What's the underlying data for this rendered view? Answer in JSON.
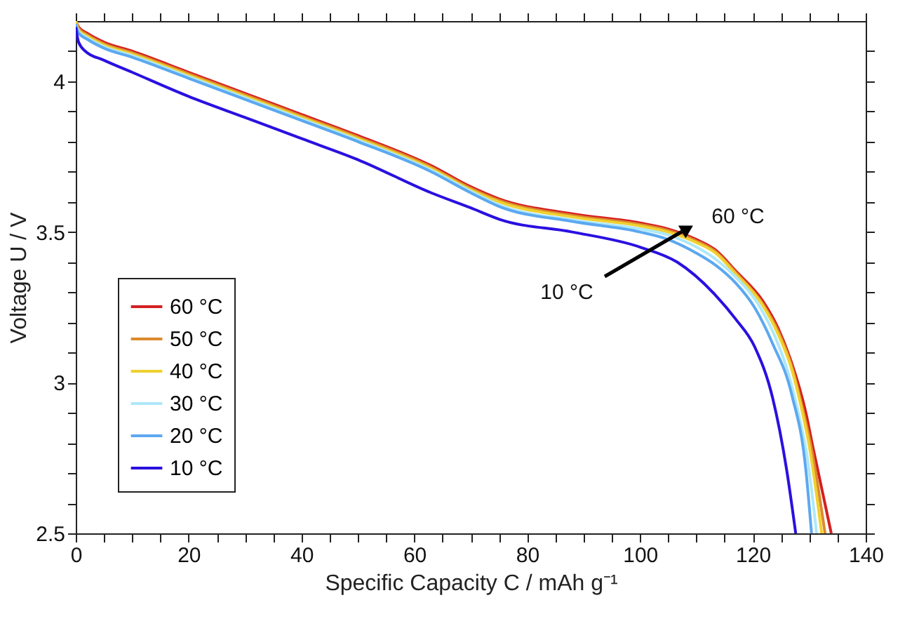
{
  "chart_data": {
    "type": "line",
    "xlabel": "Specific Capacity C / mAh g⁻¹",
    "ylabel": "Voltage U / V",
    "xlim": [
      0,
      140
    ],
    "ylim": [
      2.5,
      4.2
    ],
    "xticks": [
      0,
      {
        "value": 5,
        "label": null
      },
      20,
      {
        "value": 10,
        "label": null
      },
      {
        "value": 15,
        "label": null
      },
      {
        "value": 25,
        "label": null
      },
      {
        "value": 30,
        "label": null
      },
      {
        "value": 35,
        "label": null
      },
      40,
      {
        "value": 45,
        "label": null
      },
      {
        "value": 50,
        "label": null
      },
      {
        "value": 55,
        "label": null
      },
      60,
      {
        "value": 65,
        "label": null
      },
      {
        "value": 70,
        "label": null
      },
      {
        "value": 75,
        "label": null
      },
      80,
      {
        "value": 85,
        "label": null
      },
      {
        "value": 90,
        "label": null
      },
      {
        "value": 95,
        "label": null
      },
      100,
      {
        "value": 105,
        "label": null
      },
      {
        "value": 110,
        "label": null
      },
      {
        "value": 115,
        "label": null
      },
      120,
      {
        "value": 125,
        "label": null
      },
      {
        "value": 130,
        "label": null
      },
      {
        "value": 135,
        "label": null
      },
      140
    ],
    "yticks": [
      2.5,
      {
        "value": 2.6,
        "label": null
      },
      {
        "value": 2.7,
        "label": null
      },
      {
        "value": 2.8,
        "label": null
      },
      {
        "value": 2.9,
        "label": null
      },
      3,
      {
        "value": 3.1,
        "label": null
      },
      {
        "value": 3.2,
        "label": null
      },
      {
        "value": 3.3,
        "label": null
      },
      {
        "value": 3.4,
        "label": null
      },
      3.5,
      {
        "value": 3.6,
        "label": null
      },
      {
        "value": 3.7,
        "label": null
      },
      {
        "value": 3.8,
        "label": null
      },
      {
        "value": 3.9,
        "label": null
      },
      4,
      {
        "value": 4.1,
        "label": null
      }
    ],
    "grid": false,
    "legend": "bottom left",
    "marker": "none",
    "line_style": "solid",
    "annotations": [
      "10 °C",
      "60 °C"
    ],
    "series": [
      {
        "name": "60 °C",
        "color": "#d42020",
        "x": [
          0,
          0.5,
          2,
          5,
          10,
          20,
          30,
          40,
          50,
          63,
          70,
          75,
          88,
          100,
          105,
          110,
          113.4,
          117,
          121.8,
          124.5,
          126.8,
          129.4,
          130.6,
          133.9
        ],
        "values": [
          4.2,
          4.18,
          4.16,
          4.13,
          4.1,
          4.03,
          3.96,
          3.89,
          3.82,
          3.72,
          3.65,
          3.61,
          3.56,
          3.53,
          3.51,
          3.475,
          3.44,
          3.37,
          3.27,
          3.18,
          3.07,
          2.9,
          2.79,
          2.5
        ]
      },
      {
        "name": "50 °C",
        "color": "#dd8a2e",
        "x": [
          0,
          0.5,
          2,
          5,
          10,
          20,
          30,
          40,
          50,
          63,
          70,
          75,
          88,
          100,
          105,
          110,
          113.4,
          117,
          121.8,
          124.5,
          126.8,
          129,
          130.3,
          132.8
        ],
        "values": [
          4.2,
          4.175,
          4.155,
          4.125,
          4.095,
          4.025,
          3.955,
          3.885,
          3.815,
          3.715,
          3.645,
          3.605,
          3.555,
          3.525,
          3.505,
          3.47,
          3.435,
          3.365,
          3.26,
          3.17,
          3.06,
          2.9,
          2.79,
          2.5
        ]
      },
      {
        "name": "40 °C",
        "color": "#f0d030",
        "x": [
          0,
          0.5,
          2,
          5,
          10,
          20,
          30,
          40,
          50,
          63,
          70,
          75,
          88,
          100,
          105,
          110,
          113.4,
          117,
          121.8,
          124.5,
          126.8,
          128.8,
          130,
          132.2
        ],
        "values": [
          4.2,
          4.17,
          4.15,
          4.12,
          4.09,
          4.02,
          3.95,
          3.88,
          3.81,
          3.71,
          3.64,
          3.6,
          3.55,
          3.52,
          3.5,
          3.465,
          3.43,
          3.36,
          3.255,
          3.16,
          3.05,
          2.9,
          2.79,
          2.5
        ]
      },
      {
        "name": "30 °C",
        "color": "#aee8f8",
        "x": [
          0,
          0.5,
          2,
          5,
          10,
          20,
          30,
          40,
          50,
          63,
          70,
          75,
          88,
          100,
          105,
          110,
          113.4,
          117,
          121.3,
          124,
          126.3,
          128.3,
          129.5,
          131.3
        ],
        "values": [
          4.19,
          4.165,
          4.145,
          4.115,
          4.085,
          4.015,
          3.945,
          3.875,
          3.805,
          3.705,
          3.635,
          3.59,
          3.54,
          3.51,
          3.49,
          3.45,
          3.41,
          3.35,
          3.25,
          3.15,
          3.03,
          2.88,
          2.77,
          2.5
        ]
      },
      {
        "name": "20 °C",
        "color": "#5ca8f0",
        "x": [
          0,
          0.5,
          2,
          5,
          10,
          20,
          30,
          40,
          50,
          63,
          70,
          75,
          88,
          100,
          105,
          110,
          113.4,
          117,
          120.3,
          123.5,
          126.9,
          129.4,
          130.4
        ],
        "values": [
          4.19,
          4.16,
          4.14,
          4.11,
          4.08,
          4.01,
          3.94,
          3.87,
          3.8,
          3.7,
          3.63,
          3.585,
          3.535,
          3.5,
          3.475,
          3.43,
          3.39,
          3.33,
          3.25,
          3.13,
          2.96,
          2.71,
          2.5
        ]
      },
      {
        "name": "10 °C",
        "color": "#2a10e0",
        "x": [
          0,
          0.5,
          1.7,
          5,
          10,
          20,
          30,
          40,
          50,
          63,
          70,
          75.4,
          88,
          100,
          106.6,
          113.4,
          117,
          120.3,
          123.5,
          126,
          127.6
        ],
        "values": [
          4.18,
          4.13,
          4.1,
          4.07,
          4.03,
          3.95,
          3.88,
          3.81,
          3.74,
          3.63,
          3.58,
          3.54,
          3.5,
          3.45,
          3.4,
          3.29,
          3.21,
          3.12,
          2.95,
          2.71,
          2.5
        ]
      }
    ]
  }
}
